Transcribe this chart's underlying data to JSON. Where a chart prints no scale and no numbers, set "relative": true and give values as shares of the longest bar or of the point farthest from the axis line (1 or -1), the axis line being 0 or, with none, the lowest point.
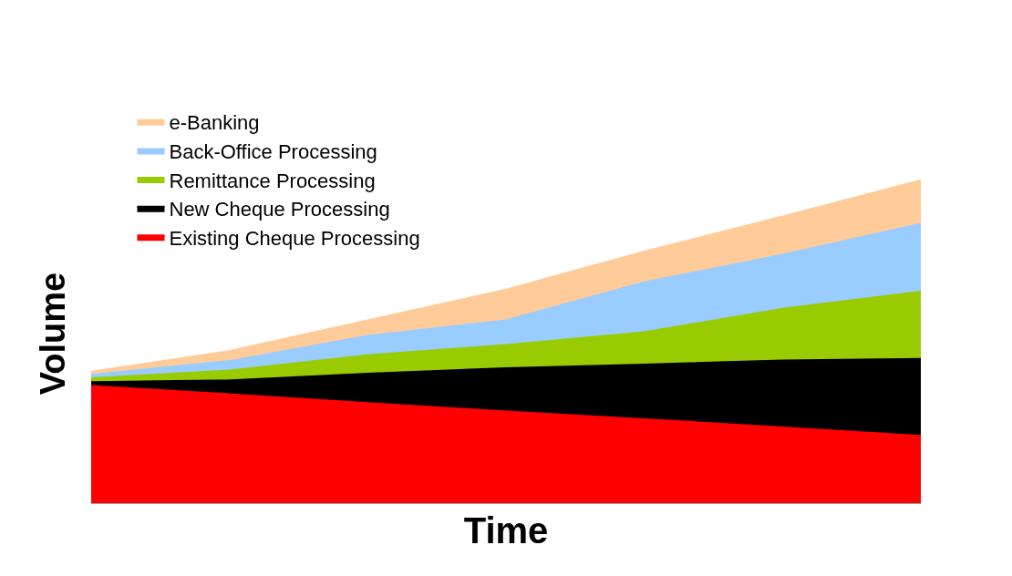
{
  "chart_data": {
    "type": "area",
    "stacked": true,
    "relative": true,
    "xlabel": "Time",
    "ylabel": "Volume",
    "legend": "top left",
    "tick_labels": false,
    "categories": [
      null,
      null,
      null,
      null,
      null,
      null,
      null
    ],
    "series": [
      {
        "name": "Existing Cheque Processing",
        "color": "#ff0000",
        "values": [
          0.363,
          0.337,
          0.31,
          0.284,
          0.26,
          0.234,
          0.208
        ]
      },
      {
        "name": "New Cheque Processing",
        "color": "#000000",
        "values": [
          0.012,
          0.043,
          0.091,
          0.134,
          0.169,
          0.208,
          0.239
        ]
      },
      {
        "name": "Remittance Processing",
        "color": "#99cc00",
        "values": [
          0.012,
          0.031,
          0.057,
          0.072,
          0.1,
          0.16,
          0.208
        ]
      },
      {
        "name": "Back-Office Processing",
        "color": "#99ccff",
        "values": [
          0.01,
          0.029,
          0.06,
          0.076,
          0.155,
          0.167,
          0.21
        ]
      },
      {
        "name": "e-Banking",
        "color": "#ffcc99",
        "values": [
          0.01,
          0.031,
          0.048,
          0.095,
          0.095,
          0.119,
          0.135
        ]
      }
    ]
  }
}
